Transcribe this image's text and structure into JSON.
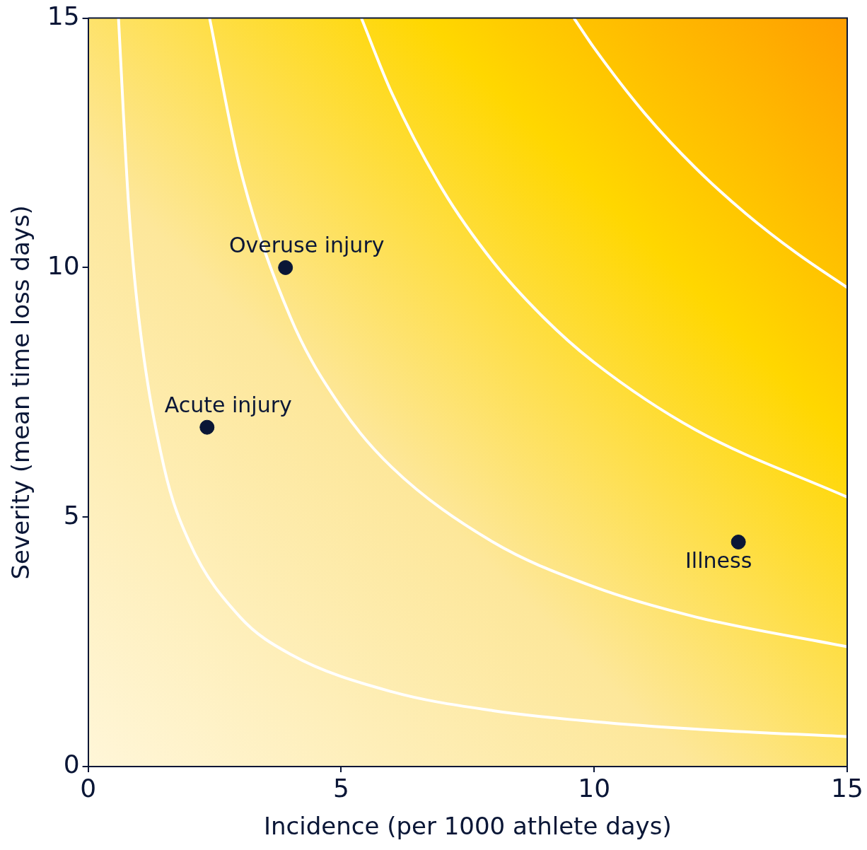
{
  "chart_data": {
    "type": "scatter",
    "xlabel": "Incidence (per 1000 athlete days)",
    "ylabel": "Severity (mean time loss days)",
    "xlim": [
      0,
      15
    ],
    "ylim": [
      0,
      15
    ],
    "xticks": [
      0,
      5,
      10,
      15
    ],
    "yticks": [
      0,
      5,
      10,
      15
    ],
    "grid": false,
    "legend": false,
    "series": [
      {
        "type": "line",
        "color": "#ffffff",
        "marker": "none",
        "x": [
          0.6,
          0.8,
          1,
          1.5,
          2,
          3,
          4,
          6,
          8,
          10,
          12,
          15
        ],
        "values": [
          15,
          11.25,
          9,
          6,
          4.5,
          3,
          2.25,
          1.5,
          1.12,
          0.9,
          0.75,
          0.6
        ]
      },
      {
        "type": "line",
        "color": "#ffffff",
        "marker": "none",
        "x": [
          2.4,
          3,
          4,
          5,
          6,
          8,
          10,
          12,
          15
        ],
        "values": [
          15,
          12,
          9,
          7.2,
          6,
          4.5,
          3.6,
          3,
          2.4
        ]
      },
      {
        "type": "line",
        "color": "#ffffff",
        "marker": "none",
        "x": [
          5.4,
          6,
          7,
          8,
          9,
          10,
          12,
          15
        ],
        "values": [
          15,
          13.5,
          11.57,
          10.12,
          9,
          8.1,
          6.75,
          5.4
        ]
      },
      {
        "type": "line",
        "color": "#ffffff",
        "marker": "none",
        "x": [
          9.6,
          10,
          11,
          12,
          13,
          14,
          15
        ],
        "values": [
          15,
          14.4,
          13.09,
          12,
          11.08,
          10.29,
          9.6
        ]
      },
      {
        "type": "scatter",
        "color": "#0a1636",
        "marker": "circle",
        "x": [
          3.9,
          2.35,
          12.85
        ],
        "values": [
          10,
          6.8,
          4.5
        ]
      }
    ],
    "annotations": [
      {
        "text": "Overuse injury",
        "x": 3.9,
        "y": 10
      },
      {
        "text": "Acute injury",
        "x": 2.35,
        "y": 6.8
      },
      {
        "text": "Illness",
        "x": 12.85,
        "y": 4.5
      }
    ]
  }
}
